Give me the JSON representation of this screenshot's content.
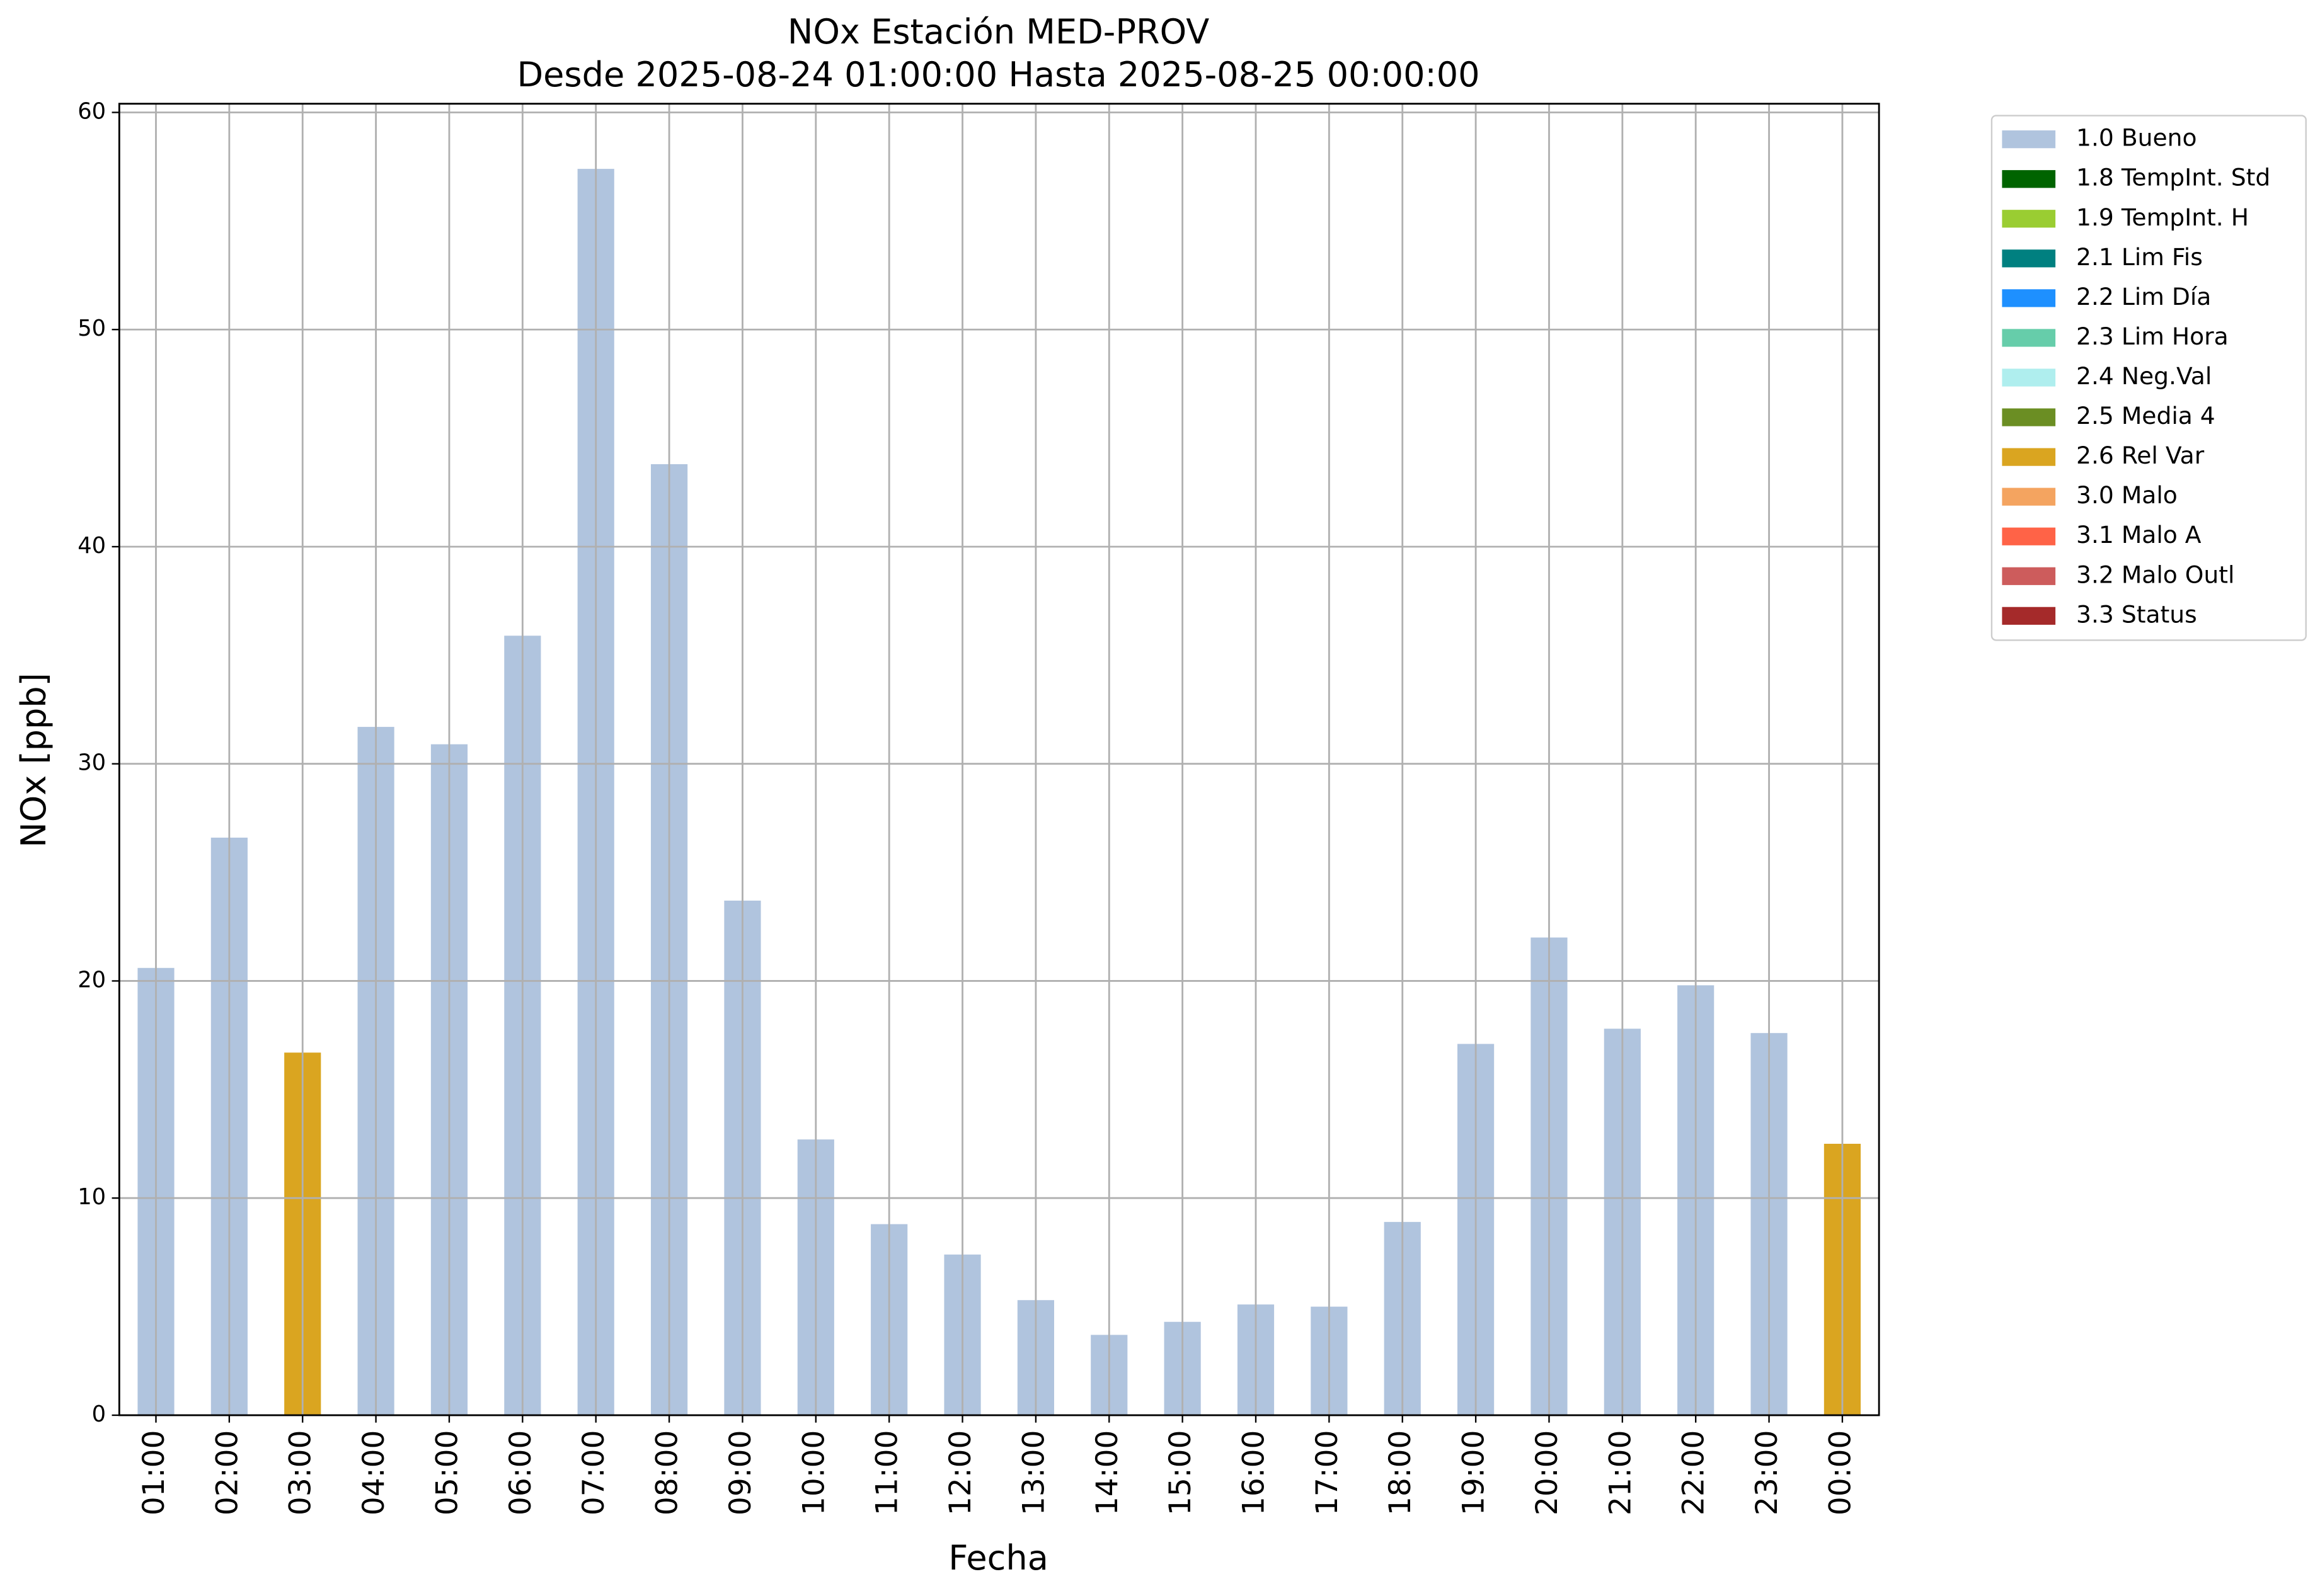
{
  "chart_data": {
    "type": "stacked_bar",
    "title": "NOx Estación MED-PROV",
    "subtitle": "Desde 2025-08-24 01:00:00 Hasta 2025-08-25 00:00:00",
    "x_label": "Fecha",
    "y_label": "NOx [ppb]",
    "categories": [
      "01:00",
      "02:00",
      "03:00",
      "04:00",
      "05:00",
      "06:00",
      "07:00",
      "08:00",
      "09:00",
      "10:00",
      "11:00",
      "12:00",
      "13:00",
      "14:00",
      "15:00",
      "16:00",
      "17:00",
      "18:00",
      "19:00",
      "20:00",
      "21:00",
      "22:00",
      "23:00",
      "00:00"
    ],
    "series": [
      {
        "name": "1.0 Bueno",
        "color": "#b0c4de",
        "values": [
          20.6,
          26.6,
          null,
          31.7,
          30.9,
          35.9,
          57.4,
          43.8,
          23.7,
          12.7,
          8.8,
          7.4,
          5.3,
          3.7,
          4.3,
          5.1,
          5.0,
          8.9,
          17.1,
          22.0,
          17.8,
          19.8,
          17.6,
          null
        ]
      },
      {
        "name": "1.8 TempInt. Std",
        "color": "#006400",
        "values": [
          null,
          null,
          null,
          null,
          null,
          null,
          null,
          null,
          null,
          null,
          null,
          null,
          null,
          null,
          null,
          null,
          null,
          null,
          null,
          null,
          null,
          null,
          null,
          null
        ]
      },
      {
        "name": "1.9 TempInt. H",
        "color": "#9acd32",
        "values": [
          null,
          null,
          null,
          null,
          null,
          null,
          null,
          null,
          null,
          null,
          null,
          null,
          null,
          null,
          null,
          null,
          null,
          null,
          null,
          null,
          null,
          null,
          null,
          null
        ]
      },
      {
        "name": "2.1 Lim Fis",
        "color": "#008080",
        "values": [
          null,
          null,
          null,
          null,
          null,
          null,
          null,
          null,
          null,
          null,
          null,
          null,
          null,
          null,
          null,
          null,
          null,
          null,
          null,
          null,
          null,
          null,
          null,
          null
        ]
      },
      {
        "name": "2.2 Lim Día",
        "color": "#1e90ff",
        "values": [
          null,
          null,
          null,
          null,
          null,
          null,
          null,
          null,
          null,
          null,
          null,
          null,
          null,
          null,
          null,
          null,
          null,
          null,
          null,
          null,
          null,
          null,
          null,
          null
        ]
      },
      {
        "name": "2.3 Lim Hora",
        "color": "#66cdaa",
        "values": [
          null,
          null,
          null,
          null,
          null,
          null,
          null,
          null,
          null,
          null,
          null,
          null,
          null,
          null,
          null,
          null,
          null,
          null,
          null,
          null,
          null,
          null,
          null,
          null
        ]
      },
      {
        "name": "2.4 Neg.Val",
        "color": "#afeeee",
        "values": [
          null,
          null,
          null,
          null,
          null,
          null,
          null,
          null,
          null,
          null,
          null,
          null,
          null,
          null,
          null,
          null,
          null,
          null,
          null,
          null,
          null,
          null,
          null,
          null
        ]
      },
      {
        "name": "2.5 Media 4",
        "color": "#6b8e23",
        "values": [
          null,
          null,
          null,
          null,
          null,
          null,
          null,
          null,
          null,
          null,
          null,
          null,
          null,
          null,
          null,
          null,
          null,
          null,
          null,
          null,
          null,
          null,
          null,
          null
        ]
      },
      {
        "name": "2.6 Rel Var",
        "color": "#daa520",
        "values": [
          null,
          null,
          16.7,
          null,
          null,
          null,
          null,
          null,
          null,
          null,
          null,
          null,
          null,
          null,
          null,
          null,
          null,
          null,
          null,
          null,
          null,
          null,
          null,
          12.5
        ]
      },
      {
        "name": "3.0 Malo",
        "color": "#f4a460",
        "values": [
          null,
          null,
          null,
          null,
          null,
          null,
          null,
          null,
          null,
          null,
          null,
          null,
          null,
          null,
          null,
          null,
          null,
          null,
          null,
          null,
          null,
          null,
          null,
          null
        ]
      },
      {
        "name": "3.1 Malo A",
        "color": "#ff6347",
        "values": [
          null,
          null,
          null,
          null,
          null,
          null,
          null,
          null,
          null,
          null,
          null,
          null,
          null,
          null,
          null,
          null,
          null,
          null,
          null,
          null,
          null,
          null,
          null,
          null
        ]
      },
      {
        "name": "3.2 Malo Outl",
        "color": "#cd5c5c",
        "values": [
          null,
          null,
          null,
          null,
          null,
          null,
          null,
          null,
          null,
          null,
          null,
          null,
          null,
          null,
          null,
          null,
          null,
          null,
          null,
          null,
          null,
          null,
          null,
          null
        ]
      },
      {
        "name": "3.3 Status",
        "color": "#a52a2a",
        "values": [
          null,
          null,
          null,
          null,
          null,
          null,
          null,
          null,
          null,
          null,
          null,
          null,
          null,
          null,
          null,
          null,
          null,
          null,
          null,
          null,
          null,
          null,
          null,
          null
        ]
      }
    ],
    "ylim": [
      0,
      60.4
    ],
    "yticks": [
      0,
      10,
      20,
      30,
      40,
      50,
      60
    ],
    "grid": true,
    "legend": "outside-right"
  }
}
